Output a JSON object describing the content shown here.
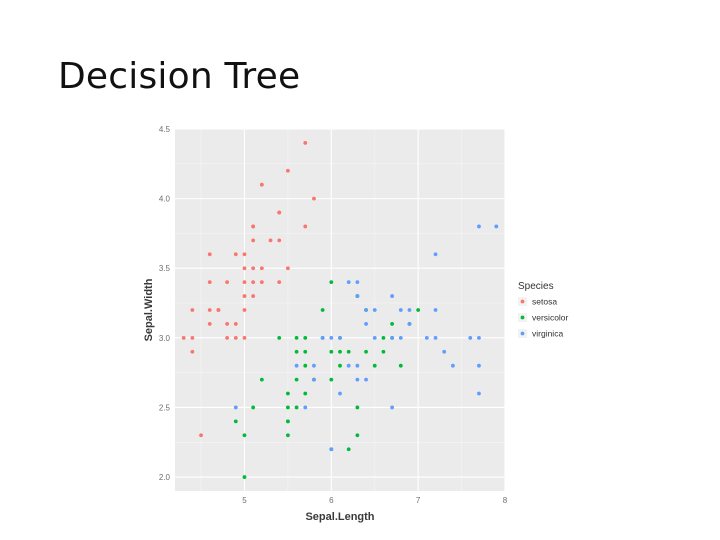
{
  "slide": {
    "title": "Decision Tree"
  },
  "chart_data": {
    "type": "scatter",
    "title": "",
    "xlabel": "Sepal.Length",
    "ylabel": "Sepal.Width",
    "xlim": [
      4.2,
      8.0
    ],
    "ylim": [
      1.9,
      4.5
    ],
    "x_ticks": [
      5,
      6,
      7,
      8
    ],
    "y_ticks": [
      2.0,
      2.5,
      3.0,
      3.5,
      4.0,
      4.5
    ],
    "x_tick_labels": [
      "5",
      "6",
      "7",
      "8"
    ],
    "y_tick_labels": [
      "2.0",
      "2.5",
      "3.0",
      "3.5",
      "4.0",
      "4.5"
    ],
    "grid": true,
    "panel_background": "#ebebeb",
    "legend": {
      "title": "Species",
      "position": "right"
    },
    "series": [
      {
        "name": "setosa",
        "color": "#f8766d",
        "points": [
          [
            4.3,
            3.0
          ],
          [
            4.4,
            2.9
          ],
          [
            4.4,
            3.0
          ],
          [
            4.4,
            3.2
          ],
          [
            4.5,
            2.3
          ],
          [
            4.6,
            3.1
          ],
          [
            4.6,
            3.4
          ],
          [
            4.6,
            3.6
          ],
          [
            4.6,
            3.2
          ],
          [
            4.7,
            3.2
          ],
          [
            4.7,
            3.2
          ],
          [
            4.8,
            3.0
          ],
          [
            4.8,
            3.1
          ],
          [
            4.8,
            3.4
          ],
          [
            4.9,
            3.0
          ],
          [
            4.9,
            3.1
          ],
          [
            4.9,
            3.6
          ],
          [
            5.0,
            3.0
          ],
          [
            5.0,
            3.2
          ],
          [
            5.0,
            3.3
          ],
          [
            5.0,
            3.4
          ],
          [
            5.0,
            3.5
          ],
          [
            5.0,
            3.6
          ],
          [
            5.1,
            3.3
          ],
          [
            5.1,
            3.4
          ],
          [
            5.1,
            3.5
          ],
          [
            5.1,
            3.7
          ],
          [
            5.1,
            3.8
          ],
          [
            5.1,
            3.8
          ],
          [
            5.2,
            3.4
          ],
          [
            5.2,
            3.5
          ],
          [
            5.2,
            4.1
          ],
          [
            5.3,
            3.7
          ],
          [
            5.4,
            3.4
          ],
          [
            5.4,
            3.7
          ],
          [
            5.4,
            3.9
          ],
          [
            5.4,
            3.9
          ],
          [
            5.5,
            3.5
          ],
          [
            5.5,
            4.2
          ],
          [
            5.7,
            3.8
          ],
          [
            5.7,
            4.4
          ],
          [
            5.8,
            4.0
          ]
        ]
      },
      {
        "name": "versicolor",
        "color": "#00ba38",
        "points": [
          [
            4.9,
            2.4
          ],
          [
            5.0,
            2.0
          ],
          [
            5.0,
            2.3
          ],
          [
            5.1,
            2.5
          ],
          [
            5.2,
            2.7
          ],
          [
            5.4,
            3.0
          ],
          [
            5.5,
            2.3
          ],
          [
            5.5,
            2.4
          ],
          [
            5.5,
            2.4
          ],
          [
            5.5,
            2.5
          ],
          [
            5.5,
            2.6
          ],
          [
            5.6,
            2.5
          ],
          [
            5.6,
            2.7
          ],
          [
            5.6,
            2.9
          ],
          [
            5.6,
            3.0
          ],
          [
            5.7,
            2.6
          ],
          [
            5.7,
            2.8
          ],
          [
            5.7,
            2.9
          ],
          [
            5.7,
            3.0
          ],
          [
            5.8,
            2.7
          ],
          [
            5.9,
            3.0
          ],
          [
            5.9,
            3.2
          ],
          [
            6.0,
            2.2
          ],
          [
            6.0,
            2.7
          ],
          [
            6.0,
            2.9
          ],
          [
            6.0,
            3.4
          ],
          [
            6.1,
            2.8
          ],
          [
            6.1,
            2.9
          ],
          [
            6.1,
            3.0
          ],
          [
            6.2,
            2.2
          ],
          [
            6.2,
            2.9
          ],
          [
            6.3,
            2.3
          ],
          [
            6.3,
            2.5
          ],
          [
            6.3,
            3.3
          ],
          [
            6.4,
            2.9
          ],
          [
            6.4,
            3.2
          ],
          [
            6.5,
            2.8
          ],
          [
            6.6,
            2.9
          ],
          [
            6.6,
            3.0
          ],
          [
            6.7,
            3.0
          ],
          [
            6.7,
            3.1
          ],
          [
            6.8,
            2.8
          ],
          [
            6.9,
            3.1
          ],
          [
            7.0,
            3.2
          ]
        ]
      },
      {
        "name": "virginica",
        "color": "#619cff",
        "points": [
          [
            4.9,
            2.5
          ],
          [
            5.6,
            2.8
          ],
          [
            5.7,
            2.5
          ],
          [
            5.8,
            2.7
          ],
          [
            5.8,
            2.8
          ],
          [
            5.9,
            3.0
          ],
          [
            6.0,
            2.2
          ],
          [
            6.0,
            3.0
          ],
          [
            6.1,
            2.6
          ],
          [
            6.1,
            3.0
          ],
          [
            6.2,
            2.8
          ],
          [
            6.2,
            3.4
          ],
          [
            6.3,
            2.7
          ],
          [
            6.3,
            2.8
          ],
          [
            6.3,
            3.3
          ],
          [
            6.3,
            3.4
          ],
          [
            6.4,
            2.7
          ],
          [
            6.4,
            3.1
          ],
          [
            6.4,
            3.2
          ],
          [
            6.5,
            3.0
          ],
          [
            6.5,
            3.2
          ],
          [
            6.7,
            2.5
          ],
          [
            6.7,
            3.0
          ],
          [
            6.7,
            3.3
          ],
          [
            6.8,
            3.0
          ],
          [
            6.8,
            3.2
          ],
          [
            6.9,
            3.1
          ],
          [
            6.9,
            3.2
          ],
          [
            7.1,
            3.0
          ],
          [
            7.2,
            3.0
          ],
          [
            7.2,
            3.2
          ],
          [
            7.2,
            3.6
          ],
          [
            7.3,
            2.9
          ],
          [
            7.4,
            2.8
          ],
          [
            7.6,
            3.0
          ],
          [
            7.7,
            2.6
          ],
          [
            7.7,
            2.8
          ],
          [
            7.7,
            3.0
          ],
          [
            7.7,
            3.8
          ],
          [
            7.9,
            3.8
          ]
        ]
      }
    ]
  }
}
